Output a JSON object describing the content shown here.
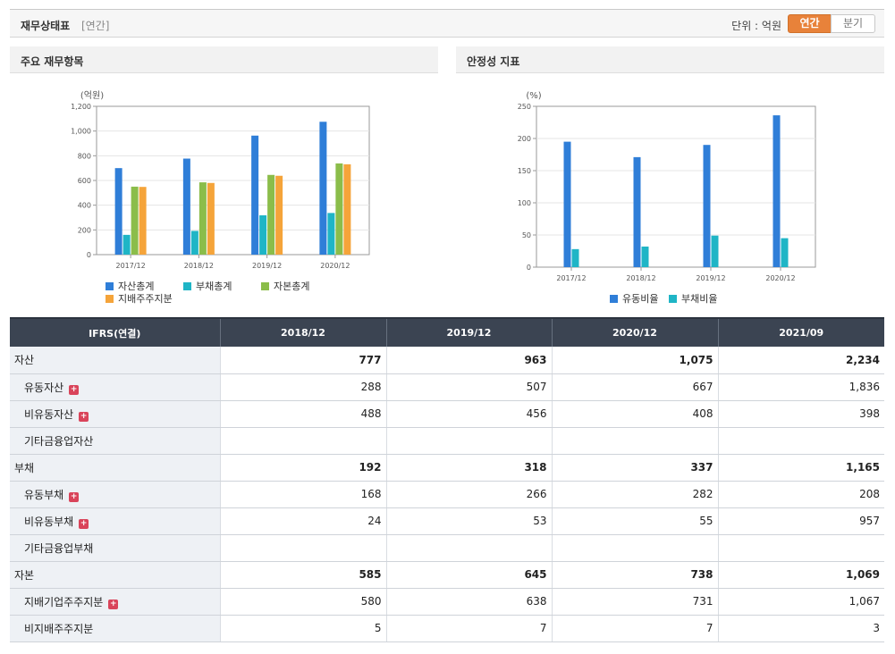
{
  "header": {
    "title": "재무상태표",
    "subtitle": "[연간]",
    "unit_label": "단위 : 억원",
    "btn_annual": "연간",
    "btn_quarter": "분기"
  },
  "panels": {
    "left_title": "주요 재무항목",
    "right_title": "안정성 지표"
  },
  "colors": {
    "blue": "#2f7ed8",
    "teal": "#1fb5c6",
    "green": "#8bbd4a",
    "orange": "#f5a43a",
    "header_bg": "#3b4452",
    "accent": "#e8823a"
  },
  "chart_data": [
    {
      "type": "bar",
      "unit": "(억원)",
      "categories": [
        "2017/12",
        "2018/12",
        "2019/12",
        "2020/12"
      ],
      "ylim": [
        0,
        1200
      ],
      "yticks": [
        "0",
        "200",
        "400",
        "600",
        "800",
        "1,000",
        "1,200"
      ],
      "grid": true,
      "legend_position": "bottom",
      "series": [
        {
          "name": "자산총계",
          "color": "#2f7ed8",
          "values": [
            700,
            777,
            963,
            1075
          ]
        },
        {
          "name": "부채총계",
          "color": "#1fb5c6",
          "values": [
            160,
            192,
            318,
            337
          ]
        },
        {
          "name": "자본총계",
          "color": "#8bbd4a",
          "values": [
            550,
            585,
            645,
            738
          ]
        },
        {
          "name": "지배주주지분",
          "color": "#f5a43a",
          "values": [
            548,
            580,
            638,
            731
          ]
        }
      ]
    },
    {
      "type": "bar",
      "unit": "(%)",
      "categories": [
        "2017/12",
        "2018/12",
        "2019/12",
        "2020/12"
      ],
      "ylim": [
        0,
        250
      ],
      "yticks": [
        "0",
        "50",
        "100",
        "150",
        "200",
        "250"
      ],
      "grid": true,
      "legend_position": "bottom",
      "series": [
        {
          "name": "유동비율",
          "color": "#2f7ed8",
          "values": [
            195,
            171,
            190,
            236
          ]
        },
        {
          "name": "부채비율",
          "color": "#1fb5c6",
          "values": [
            28,
            32,
            49,
            45
          ]
        }
      ]
    }
  ],
  "table": {
    "header_label": "IFRS(연결)",
    "columns": [
      "2018/12",
      "2019/12",
      "2020/12",
      "2021/09"
    ],
    "rows": [
      {
        "label": "자산",
        "main": true,
        "expand": false,
        "values": [
          "777",
          "963",
          "1,075",
          "2,234"
        ]
      },
      {
        "label": "유동자산",
        "main": false,
        "expand": true,
        "values": [
          "288",
          "507",
          "667",
          "1,836"
        ]
      },
      {
        "label": "비유동자산",
        "main": false,
        "expand": true,
        "values": [
          "488",
          "456",
          "408",
          "398"
        ]
      },
      {
        "label": "기타금융업자산",
        "main": false,
        "expand": false,
        "values": [
          "",
          "",
          "",
          ""
        ]
      },
      {
        "label": "부채",
        "main": true,
        "expand": false,
        "values": [
          "192",
          "318",
          "337",
          "1,165"
        ]
      },
      {
        "label": "유동부채",
        "main": false,
        "expand": true,
        "values": [
          "168",
          "266",
          "282",
          "208"
        ]
      },
      {
        "label": "비유동부채",
        "main": false,
        "expand": true,
        "values": [
          "24",
          "53",
          "55",
          "957"
        ]
      },
      {
        "label": "기타금융업부채",
        "main": false,
        "expand": false,
        "values": [
          "",
          "",
          "",
          ""
        ]
      },
      {
        "label": "자본",
        "main": true,
        "expand": false,
        "values": [
          "585",
          "645",
          "738",
          "1,069"
        ]
      },
      {
        "label": "지배기업주주지분",
        "main": false,
        "expand": true,
        "values": [
          "580",
          "638",
          "731",
          "1,067"
        ]
      },
      {
        "label": "비지배주주지분",
        "main": false,
        "expand": false,
        "values": [
          "5",
          "7",
          "7",
          "3"
        ]
      }
    ],
    "expand_symbol": "+"
  }
}
